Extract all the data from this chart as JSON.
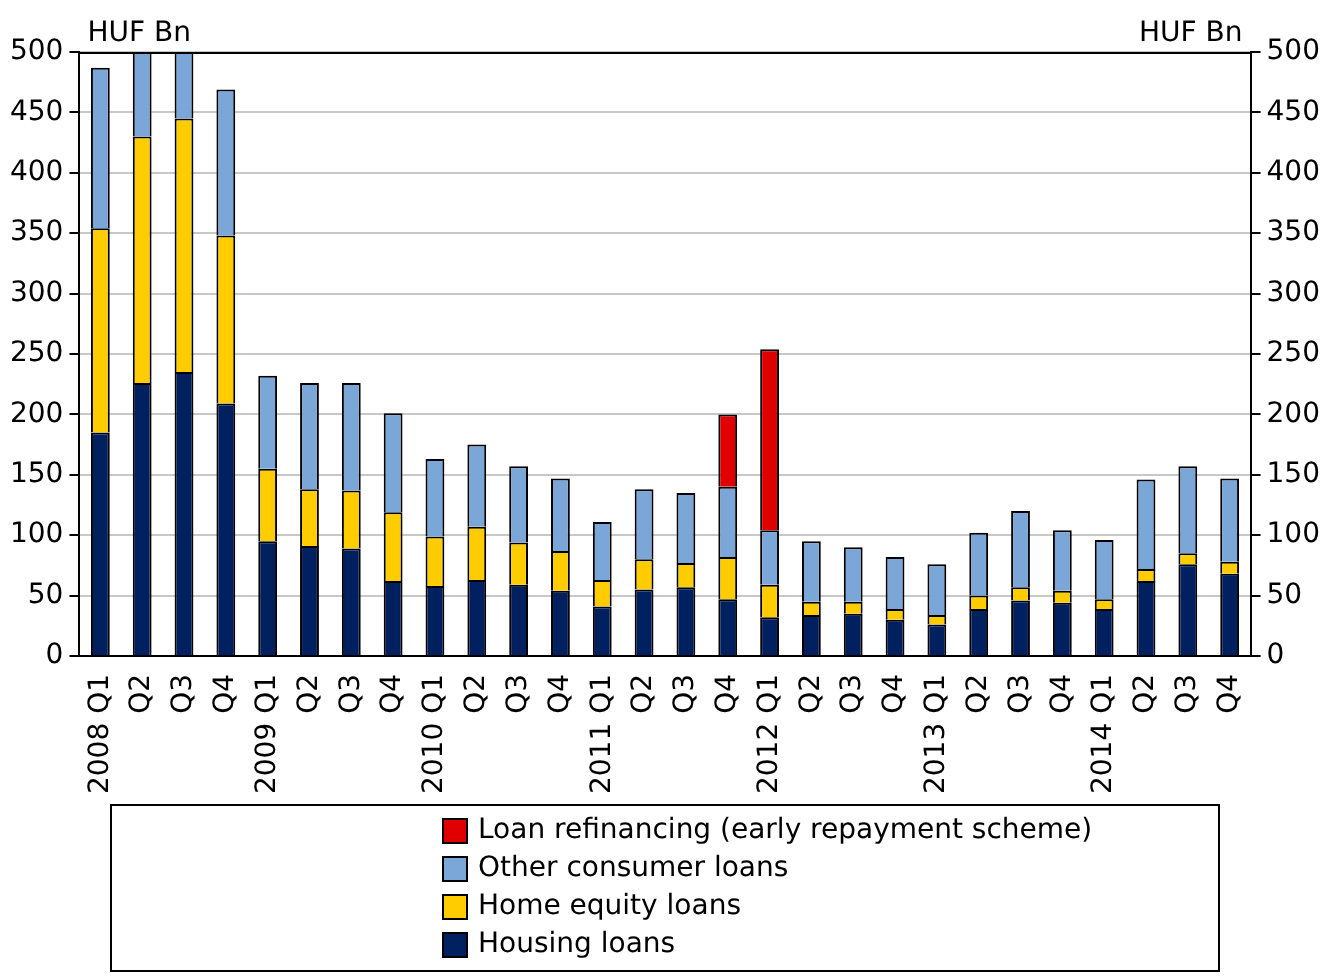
{
  "chart_data": {
    "type": "bar",
    "stacked": true,
    "ylabel": "HUF Bn",
    "y2label": "HUF Bn",
    "categories": [
      "2008 Q1",
      "Q2",
      "Q3",
      "Q4",
      "2009 Q1",
      "Q2",
      "Q3",
      "Q4",
      "2010 Q1",
      "Q2",
      "Q3",
      "Q4",
      "2011 Q1",
      "Q2",
      "Q3",
      "Q4",
      "2012 Q1",
      "Q2",
      "Q3",
      "Q4",
      "2013 Q1",
      "Q2",
      "Q3",
      "Q4",
      "2014 Q1",
      "Q2",
      "Q3",
      "Q4"
    ],
    "series": [
      {
        "name": "Housing loans",
        "color": "#002060",
        "values": [
          185,
          226,
          235,
          209,
          95,
          91,
          89,
          62,
          58,
          63,
          59,
          54,
          41,
          55,
          57,
          47,
          32,
          34,
          35,
          30,
          26,
          39,
          46,
          44,
          39,
          62,
          76,
          68
        ]
      },
      {
        "name": "Home equity loans",
        "color": "#ffcc00",
        "values": [
          169,
          204,
          210,
          139,
          60,
          47,
          48,
          57,
          41,
          44,
          35,
          33,
          22,
          25,
          20,
          35,
          27,
          11,
          10,
          9,
          8,
          11,
          11,
          10,
          8,
          10,
          9,
          10
        ]
      },
      {
        "name": "Other consumer loans",
        "color": "#7aa6d8",
        "values": [
          133,
          70,
          55,
          121,
          77,
          88,
          89,
          82,
          64,
          68,
          63,
          60,
          48,
          58,
          58,
          58,
          45,
          50,
          45,
          43,
          42,
          52,
          63,
          50,
          49,
          74,
          72,
          69
        ]
      },
      {
        "name": "Loan refinancing (early repayment scheme)",
        "color": "#e00000",
        "values": [
          null,
          null,
          null,
          null,
          null,
          null,
          null,
          null,
          null,
          null,
          null,
          null,
          null,
          null,
          null,
          60,
          150,
          null,
          null,
          null,
          null,
          null,
          null,
          null,
          null,
          null,
          null,
          null
        ]
      }
    ],
    "ylim": [
      0,
      500
    ],
    "yticks": [
      0,
      50,
      100,
      150,
      200,
      250,
      300,
      350,
      400,
      450,
      500
    ],
    "y2lim": [
      0,
      500
    ],
    "y2ticks": [
      0,
      50,
      100,
      150,
      200,
      250,
      300,
      350,
      400,
      450,
      500
    ],
    "grid": "y",
    "legend": "bottom"
  }
}
